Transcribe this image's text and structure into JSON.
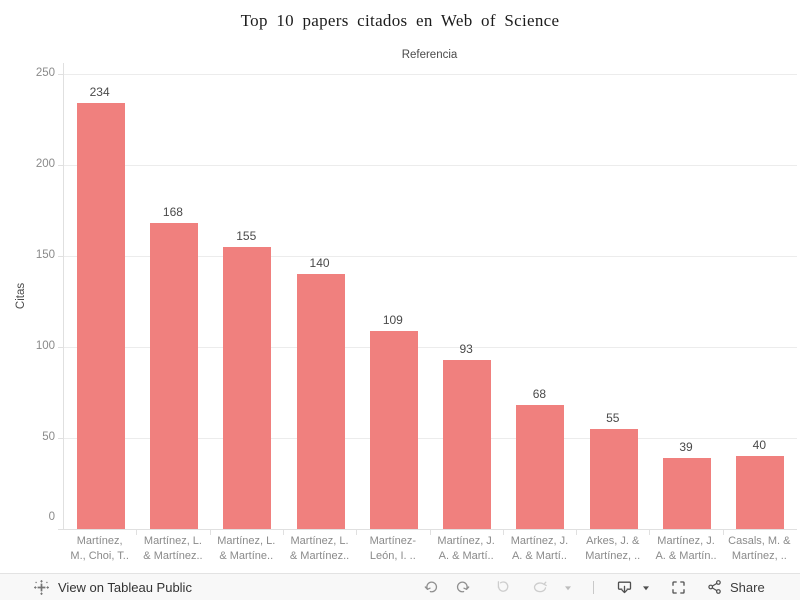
{
  "chart_data": {
    "type": "bar",
    "title": "Top 10 papers citados en Web of Science",
    "subtitle": "Referencia",
    "ylabel": "Citas",
    "xlabel": "",
    "ylim": [
      0,
      256
    ],
    "yticks": [
      0,
      50,
      100,
      150,
      200,
      250
    ],
    "grid": "on",
    "legend": "none",
    "value_labels": "on",
    "categories": [
      "Martínez, M., Choi, T..",
      "Martínez, L. & Martínez..",
      "Martínez, L. & Martíne..",
      "Martínez, L. & Martínez..",
      "Martínez-León, I. ..",
      "Martínez, J. A. & Martí..",
      "Martínez, J. A. & Martí..",
      "Arkes, J. & Martínez, ..",
      "Martínez, J. A. & Martín..",
      "Casals, M. & Martínez, .."
    ],
    "categories_lines": [
      [
        "Martínez,",
        "M., Choi, T.."
      ],
      [
        "Martínez, L.",
        "& Martínez.."
      ],
      [
        "Martínez, L.",
        "& Martíne.."
      ],
      [
        "Martínez, L.",
        "& Martínez.."
      ],
      [
        "Martínez-",
        "León, I. .."
      ],
      [
        "Martínez, J.",
        "A. & Martí.."
      ],
      [
        "Martínez, J.",
        "A. & Martí.."
      ],
      [
        "Arkes, J. &",
        "Martínez, .."
      ],
      [
        "Martínez, J.",
        "A. & Martín.."
      ],
      [
        "Casals, M. &",
        "Martínez, .."
      ]
    ],
    "values": [
      234,
      168,
      155,
      140,
      109,
      93,
      68,
      55,
      39,
      40
    ]
  },
  "colors": {
    "bar": "#F0807E",
    "gridline": "#ececec",
    "axis_line": "#e0e0e0",
    "tick_label": "#8a8a8a",
    "value_label": "#4a4a4a",
    "toolbar_bg": "#f8f8f8",
    "toolbar_icon": "#4f4f4f",
    "toolbar_icon_muted": "#8f8f8f",
    "toolbar_icon_disabled": "#cdcdcd"
  },
  "toolbar": {
    "view_link_label": "View on Tableau Public",
    "share_label": "Share",
    "icons": [
      "tableau-logo",
      "undo-icon",
      "redo-icon",
      "revert-icon",
      "refresh-icon",
      "caret-down-icon",
      "download-icon",
      "caret-down-icon",
      "fullscreen-icon",
      "share-icon"
    ]
  }
}
